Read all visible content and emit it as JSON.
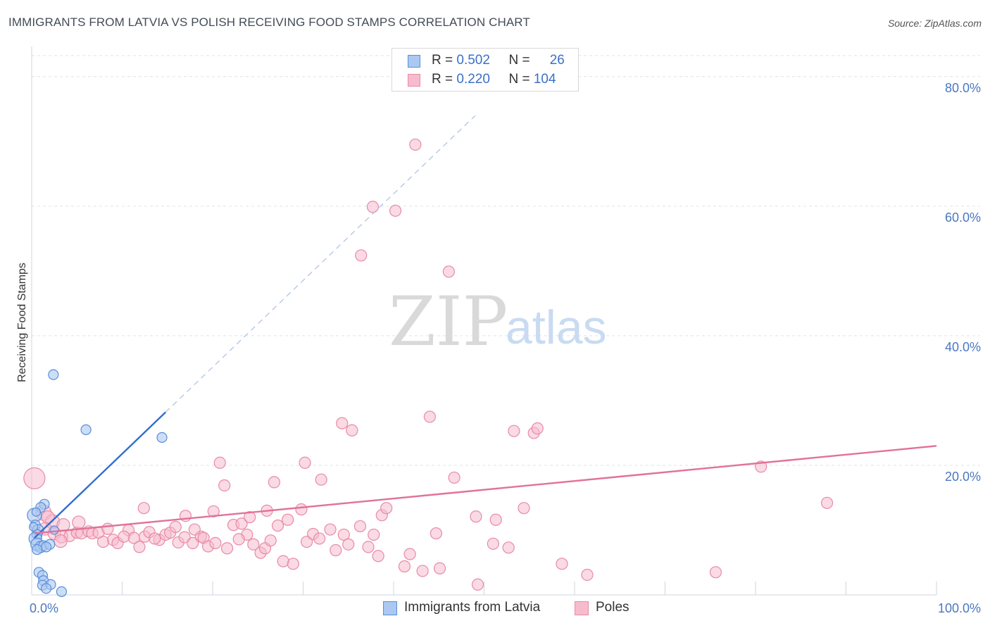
{
  "title": "IMMIGRANTS FROM LATVIA VS POLISH RECEIVING FOOD STAMPS CORRELATION CHART",
  "source": "Source: ZipAtlas.com",
  "watermark": {
    "zip": "ZIP",
    "atlas": "atlas"
  },
  "colors": {
    "blue_fill": "#aac8f2",
    "blue_stroke": "#5a8fd8",
    "blue_line": "#2f6fce",
    "pink_fill": "#f6bccd",
    "pink_stroke": "#e88aa6",
    "pink_line": "#e2719a",
    "grid": "#dde3ea",
    "tick_label": "#4a78c0"
  },
  "legend": {
    "rows": [
      {
        "r_label": "R = ",
        "r_value": "0.502",
        "n_label": "N = ",
        "n_value": "26"
      },
      {
        "r_label": "R = ",
        "r_value": "0.220",
        "n_label": "N = ",
        "n_value": "104"
      }
    ]
  },
  "bottom_legend": {
    "series1": "Immigrants from Latvia",
    "series2": "Poles"
  },
  "chart_data": {
    "type": "scatter",
    "title": "IMMIGRANTS FROM LATVIA VS POLISH RECEIVING FOOD STAMPS CORRELATION CHART",
    "xlabel": "",
    "ylabel": "Receiving Food Stamps",
    "xlim": [
      0,
      100
    ],
    "ylim": [
      0,
      84
    ],
    "x_ticks": [
      0,
      10,
      20,
      30,
      40,
      50,
      60,
      70,
      80,
      90,
      100
    ],
    "x_tick_labels": {
      "0": "0.0%",
      "100": "100.0%"
    },
    "y_ticks": [
      20,
      40,
      60,
      80
    ],
    "y_tick_labels": [
      "20.0%",
      "40.0%",
      "60.0%",
      "80.0%"
    ],
    "grid": true,
    "legend_position": "top-center",
    "series": [
      {
        "name": "Immigrants from Latvia",
        "r": 0.502,
        "n": 26,
        "trend": {
          "x0": 0.3,
          "y0": 8.8,
          "x1": 14.8,
          "y1": 28.2,
          "dashed_to_x": 49
        },
        "points": [
          [
            2.4,
            34.0,
            6
          ],
          [
            6.0,
            25.5,
            6
          ],
          [
            14.4,
            24.3,
            6
          ],
          [
            1.4,
            14.0,
            6
          ],
          [
            1.0,
            13.5,
            6
          ],
          [
            0.3,
            12.3,
            9
          ],
          [
            0.4,
            10.8,
            6
          ],
          [
            0.7,
            10.0,
            7
          ],
          [
            2.5,
            10.0,
            5
          ],
          [
            0.6,
            9.3,
            6
          ],
          [
            0.4,
            8.7,
            8
          ],
          [
            0.6,
            7.8,
            8
          ],
          [
            1.0,
            7.4,
            7
          ],
          [
            1.3,
            7.6,
            6
          ],
          [
            2.0,
            7.8,
            6
          ],
          [
            1.6,
            7.4,
            6
          ],
          [
            0.6,
            7.0,
            6
          ],
          [
            0.8,
            3.5,
            6
          ],
          [
            1.2,
            3.0,
            6
          ],
          [
            1.3,
            2.2,
            6
          ],
          [
            1.2,
            1.5,
            6
          ],
          [
            2.1,
            1.6,
            6
          ],
          [
            1.6,
            1.0,
            6
          ],
          [
            3.3,
            0.5,
            6
          ],
          [
            0.2,
            10.5,
            5
          ],
          [
            0.5,
            12.8,
            5
          ]
        ]
      },
      {
        "name": "Poles",
        "r": 0.22,
        "n": 104,
        "trend": {
          "x0": 0.3,
          "y0": 9.5,
          "x1": 100.0,
          "y1": 23.0
        },
        "points": [
          [
            42.4,
            69.5,
            7
          ],
          [
            37.7,
            59.9,
            7
          ],
          [
            40.2,
            59.3,
            7
          ],
          [
            36.4,
            52.4,
            7
          ],
          [
            46.1,
            49.9,
            7
          ],
          [
            44.0,
            27.5,
            7
          ],
          [
            34.3,
            26.5,
            7
          ],
          [
            35.4,
            25.4,
            7
          ],
          [
            53.3,
            25.3,
            7
          ],
          [
            55.5,
            25.0,
            7
          ],
          [
            55.9,
            25.7,
            7
          ],
          [
            20.8,
            20.4,
            7
          ],
          [
            30.2,
            20.4,
            7
          ],
          [
            80.6,
            19.8,
            7
          ],
          [
            46.7,
            18.1,
            7
          ],
          [
            32.0,
            17.8,
            7
          ],
          [
            26.8,
            17.4,
            7
          ],
          [
            21.3,
            16.9,
            7
          ],
          [
            87.9,
            14.2,
            7
          ],
          [
            38.7,
            12.3,
            7
          ],
          [
            39.2,
            13.4,
            7
          ],
          [
            49.1,
            12.1,
            7
          ],
          [
            54.4,
            13.4,
            7
          ],
          [
            51.3,
            11.6,
            7
          ],
          [
            0.3,
            18.0,
            14
          ],
          [
            1.3,
            12.7,
            10
          ],
          [
            2.3,
            11.3,
            9
          ],
          [
            1.8,
            12.0,
            8
          ],
          [
            3.5,
            10.8,
            8
          ],
          [
            1.5,
            10.2,
            8
          ],
          [
            2.5,
            9.5,
            8
          ],
          [
            3.3,
            9.0,
            8
          ],
          [
            4.2,
            9.1,
            7
          ],
          [
            3.2,
            8.3,
            8
          ],
          [
            5.0,
            9.6,
            7
          ],
          [
            5.5,
            9.5,
            7
          ],
          [
            6.3,
            9.8,
            7
          ],
          [
            6.7,
            9.5,
            7
          ],
          [
            7.4,
            9.6,
            7
          ],
          [
            8.4,
            10.2,
            7
          ],
          [
            7.9,
            8.2,
            7
          ],
          [
            9.0,
            8.5,
            7
          ],
          [
            9.5,
            8.0,
            7
          ],
          [
            10.7,
            10.0,
            7
          ],
          [
            11.3,
            8.8,
            7
          ],
          [
            12.5,
            9.0,
            7
          ],
          [
            13.0,
            9.7,
            7
          ],
          [
            14.1,
            8.5,
            7
          ],
          [
            14.8,
            9.3,
            7
          ],
          [
            15.3,
            9.6,
            7
          ],
          [
            16.2,
            8.1,
            7
          ],
          [
            16.9,
            8.9,
            7
          ],
          [
            17.8,
            8.0,
            7
          ],
          [
            18.7,
            9.0,
            7
          ],
          [
            19.0,
            8.8,
            7
          ],
          [
            19.5,
            7.5,
            7
          ],
          [
            20.3,
            8.0,
            7
          ],
          [
            21.6,
            7.2,
            7
          ],
          [
            22.3,
            10.8,
            7
          ],
          [
            23.2,
            11.0,
            7
          ],
          [
            23.8,
            9.3,
            7
          ],
          [
            24.5,
            7.8,
            7
          ],
          [
            25.3,
            6.5,
            7
          ],
          [
            25.8,
            7.2,
            7
          ],
          [
            26.4,
            8.4,
            7
          ],
          [
            27.2,
            10.7,
            7
          ],
          [
            28.3,
            11.6,
            7
          ],
          [
            29.8,
            13.2,
            7
          ],
          [
            27.8,
            5.2,
            7
          ],
          [
            28.9,
            4.8,
            7
          ],
          [
            30.4,
            8.2,
            7
          ],
          [
            31.1,
            9.4,
            7
          ],
          [
            31.8,
            8.7,
            7
          ],
          [
            33.0,
            10.1,
            7
          ],
          [
            33.6,
            6.9,
            7
          ],
          [
            34.5,
            9.3,
            7
          ],
          [
            35.0,
            7.8,
            7
          ],
          [
            36.3,
            10.6,
            7
          ],
          [
            37.2,
            7.4,
            7
          ],
          [
            37.8,
            9.3,
            7
          ],
          [
            38.3,
            6.0,
            7
          ],
          [
            41.2,
            4.4,
            7
          ],
          [
            41.8,
            6.3,
            7
          ],
          [
            43.2,
            3.7,
            7
          ],
          [
            45.1,
            4.1,
            7
          ],
          [
            44.7,
            9.5,
            7
          ],
          [
            49.3,
            1.6,
            7
          ],
          [
            51.0,
            7.9,
            7
          ],
          [
            52.7,
            7.3,
            7
          ],
          [
            58.6,
            4.8,
            7
          ],
          [
            61.4,
            3.1,
            7
          ],
          [
            75.6,
            3.5,
            7
          ],
          [
            5.2,
            11.2,
            8
          ],
          [
            20.1,
            12.9,
            7
          ],
          [
            12.4,
            13.4,
            7
          ],
          [
            17.0,
            12.2,
            7
          ],
          [
            10.2,
            9.0,
            7
          ],
          [
            11.9,
            7.4,
            7
          ],
          [
            13.6,
            8.7,
            7
          ],
          [
            15.9,
            10.5,
            7
          ],
          [
            18.0,
            10.1,
            7
          ],
          [
            22.9,
            8.6,
            7
          ],
          [
            24.1,
            12.0,
            7
          ],
          [
            26.0,
            13.0,
            7
          ]
        ]
      }
    ]
  }
}
